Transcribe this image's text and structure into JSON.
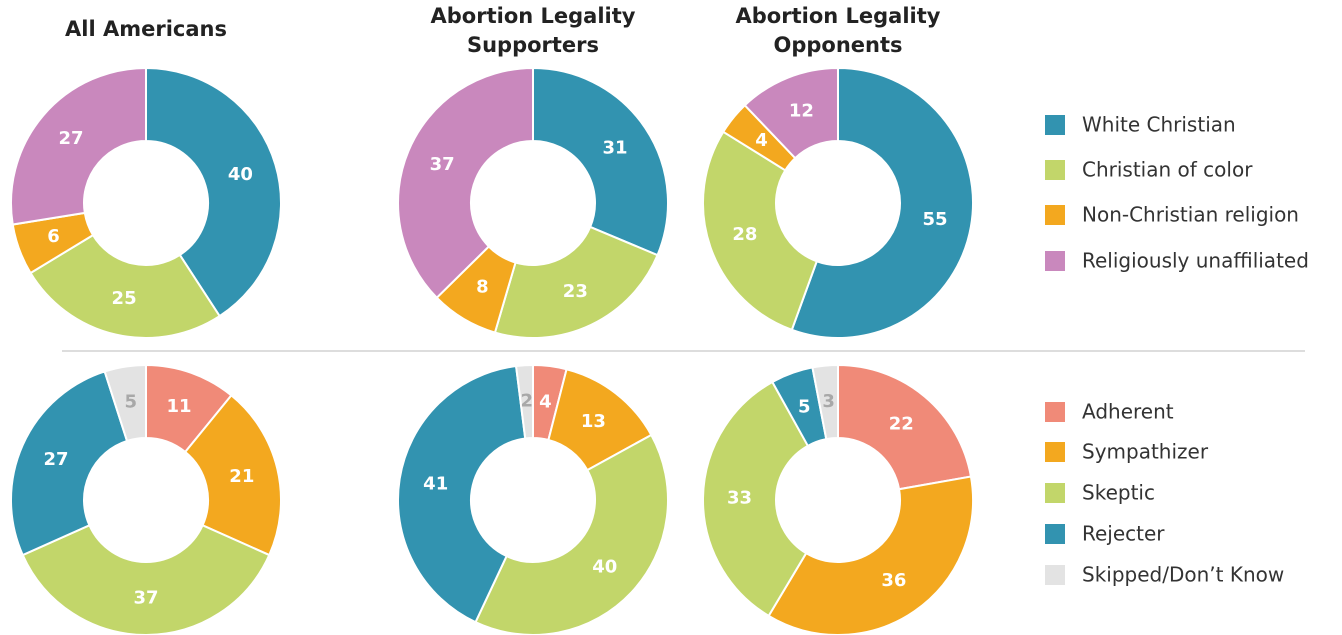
{
  "chart_data": [
    {
      "type": "donut",
      "titles": [
        "All Americans",
        "Abortion Legality Supporters",
        "Abortion Legality Opponents"
      ],
      "categories": [
        "White Christian",
        "Christian of color",
        "Non-Christian religion",
        "Religiously unaffiliated"
      ],
      "colors": [
        "#3293b0",
        "#c2d66a",
        "#f3a81f",
        "#c988bd"
      ],
      "label_colors": [
        "#ffffff",
        "#ffffff",
        "#ffffff",
        "#ffffff"
      ],
      "series": [
        {
          "name": "All Americans",
          "values": [
            40,
            25,
            6,
            27
          ]
        },
        {
          "name": "Abortion Legality Supporters",
          "values": [
            31,
            23,
            8,
            37
          ]
        },
        {
          "name": "Abortion Legality Opponents",
          "values": [
            55,
            28,
            4,
            12
          ]
        }
      ]
    },
    {
      "type": "donut",
      "categories": [
        "Adherent",
        "Sympathizer",
        "Skeptic",
        "Rejecter",
        "Skipped/Don’t Know"
      ],
      "colors": [
        "#f08a78",
        "#f3a81f",
        "#c2d66a",
        "#3293b0",
        "#e3e3e3"
      ],
      "label_colors": [
        "#ffffff",
        "#ffffff",
        "#ffffff",
        "#ffffff",
        "#a8a8a8"
      ],
      "series": [
        {
          "values": [
            11,
            21,
            37,
            27,
            5
          ]
        },
        {
          "values": [
            4,
            13,
            40,
            41,
            2
          ]
        },
        {
          "values": [
            22,
            36,
            33,
            5,
            3
          ]
        }
      ]
    }
  ]
}
